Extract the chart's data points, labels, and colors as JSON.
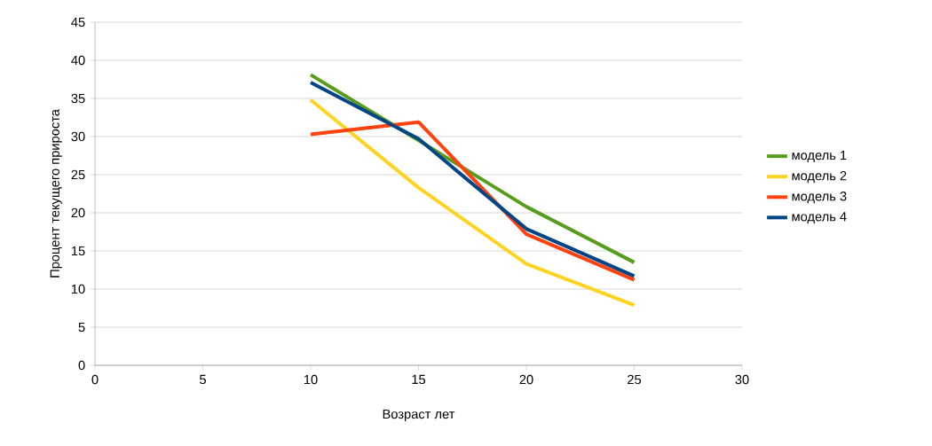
{
  "chart_data": {
    "type": "line",
    "xlabel": "Возраст лет",
    "ylabel": "Процент текущего прироста",
    "x": [
      10,
      15,
      20,
      25
    ],
    "series": [
      {
        "name": "модель 1",
        "color": "#579d1c",
        "values": [
          38.1,
          29.5,
          20.8,
          13.5
        ]
      },
      {
        "name": "модель 2",
        "color": "#ffd320",
        "values": [
          34.8,
          23.3,
          13.3,
          7.9
        ]
      },
      {
        "name": "модель 3",
        "color": "#ff420e",
        "values": [
          30.3,
          31.9,
          17.2,
          11.2
        ]
      },
      {
        "name": "модель 4",
        "color": "#004586",
        "values": [
          37.1,
          29.7,
          17.9,
          11.7
        ]
      }
    ],
    "xlim": [
      0,
      30
    ],
    "xticks": [
      0,
      5,
      10,
      15,
      20,
      25,
      30
    ],
    "ylim": [
      0,
      45
    ],
    "yticks": [
      0,
      5,
      10,
      15,
      20,
      25,
      30,
      35,
      40,
      45
    ],
    "grid": "y",
    "legend": "right",
    "marker": "none",
    "line_style": "solid"
  }
}
